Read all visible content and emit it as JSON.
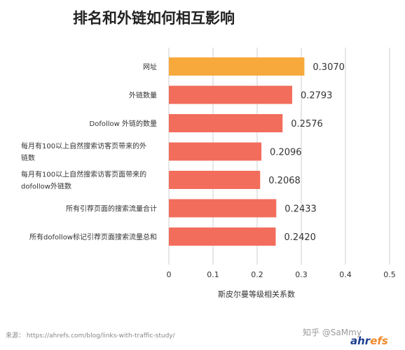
{
  "chart_data": {
    "type": "bar",
    "orientation": "horizontal",
    "title": "排名和外链如何相互影响",
    "xlabel": "斯皮尔曼等级相关系数",
    "xlim": [
      0,
      0.5
    ],
    "xticks": [
      "0",
      "0.1",
      "0.2",
      "0.3",
      "0.4",
      "0.5"
    ],
    "grid": "vertical",
    "categories": [
      [
        "网址"
      ],
      [
        "外链数量"
      ],
      [
        "Dofollow 外链的数量"
      ],
      [
        "每月有100以上自然搜索访客页带来的外",
        "链数"
      ],
      [
        "每月有100以上自然搜索访客页面带来的",
        "dofollow外链数"
      ],
      [
        "所有引荐页面的搜索流量合计"
      ],
      [
        "所有dofollow标记引荐页面搜索流量总和"
      ]
    ],
    "values": [
      0.307,
      0.2793,
      0.2576,
      0.2096,
      0.2068,
      0.2433,
      0.242
    ],
    "value_labels": [
      "0.3070",
      "0.2793",
      "0.2576",
      "0.2096",
      "0.2068",
      "0.2433",
      "0.2420"
    ],
    "highlight_index": 0,
    "colors": {
      "highlight": "#f7a93b",
      "bar": "#f26d5b",
      "grid": "#cfcfcf"
    }
  },
  "footer": {
    "source": "来源：  https://ahrefs.com/blog/links-with-traffic-study/",
    "watermark": "知乎 @SaMmy",
    "brand_main": "ahr",
    "brand_accent": "efs"
  }
}
